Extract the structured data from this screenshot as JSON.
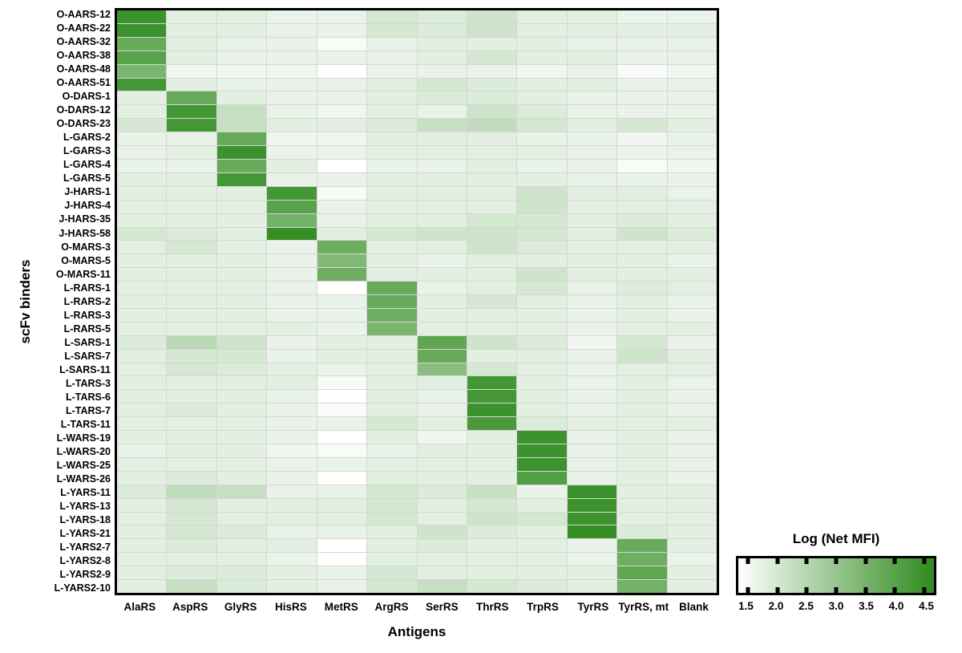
{
  "figure": {
    "y_axis_label": "scFv binders",
    "x_axis_label": "Antigens"
  },
  "colorbar": {
    "title": "Log (Net MFI)",
    "tick_labels": [
      "1.5",
      "2.0",
      "2.5",
      "3.0",
      "3.5",
      "4.0",
      "4.5"
    ],
    "min_value": 1.5,
    "max_value": 4.5,
    "min_color": "#ffffff",
    "max_color": "#2e8b1e"
  },
  "chart_data": {
    "type": "heatmap",
    "xlabel": "Antigens",
    "ylabel": "scFv binders",
    "legend_title": "Log (Net MFI)",
    "color_scale": {
      "min": 1.5,
      "max": 4.5,
      "min_color": "#ffffff",
      "max_color": "#2e8b1e",
      "legend_position": "bottom-right"
    },
    "columns": [
      "AlaRS",
      "AspRS",
      "GlyRS",
      "HisRS",
      "MetRS",
      "ArgRS",
      "SerRS",
      "ThrRS",
      "TrpRS",
      "TyrRS",
      "TyrRS, mt",
      "Blank"
    ],
    "rows": [
      "O-AARS-12",
      "O-AARS-22",
      "O-AARS-32",
      "O-AARS-38",
      "O-AARS-48",
      "O-AARS-51",
      "O-DARS-1",
      "O-DARS-12",
      "O-DARS-23",
      "L-GARS-2",
      "L-GARS-3",
      "L-GARS-4",
      "L-GARS-5",
      "J-HARS-1",
      "J-HARS-4",
      "J-HARS-35",
      "J-HARS-58",
      "O-MARS-3",
      "O-MARS-5",
      "O-MARS-11",
      "L-RARS-1",
      "L-RARS-2",
      "L-RARS-3",
      "L-RARS-5",
      "L-SARS-1",
      "L-SARS-7",
      "L-SARS-11",
      "L-TARS-3",
      "L-TARS-6",
      "L-TARS-7",
      "L-TARS-11",
      "L-WARS-19",
      "L-WARS-20",
      "L-WARS-25",
      "L-WARS-26",
      "L-YARS-11",
      "L-YARS-13",
      "L-YARS-18",
      "L-YARS-21",
      "L-YARS2-7",
      "L-YARS2-8",
      "L-YARS2-9",
      "L-YARS2-10"
    ],
    "values": [
      [
        4.3,
        1.9,
        1.9,
        1.8,
        1.8,
        2.1,
        2.0,
        2.2,
        1.9,
        1.9,
        1.8,
        1.8
      ],
      [
        4.3,
        1.9,
        1.9,
        1.8,
        1.8,
        2.1,
        2.0,
        2.2,
        1.9,
        1.9,
        1.9,
        1.9
      ],
      [
        3.7,
        1.9,
        1.8,
        1.8,
        1.6,
        1.8,
        1.9,
        1.9,
        1.9,
        1.8,
        1.8,
        1.8
      ],
      [
        3.9,
        1.9,
        1.8,
        1.8,
        1.8,
        1.8,
        1.9,
        2.1,
        1.9,
        1.9,
        1.8,
        1.8
      ],
      [
        3.4,
        1.7,
        1.7,
        1.7,
        1.5,
        1.8,
        1.8,
        1.8,
        1.7,
        1.8,
        1.6,
        1.7
      ],
      [
        4.2,
        1.9,
        1.8,
        1.8,
        1.8,
        1.9,
        2.1,
        2.0,
        1.9,
        1.9,
        1.8,
        1.8
      ],
      [
        1.9,
        3.7,
        1.9,
        1.8,
        1.8,
        1.9,
        2.0,
        2.0,
        1.9,
        1.8,
        1.8,
        1.8
      ],
      [
        1.9,
        4.2,
        2.3,
        1.8,
        1.7,
        1.9,
        1.8,
        2.2,
        2.0,
        1.8,
        1.8,
        1.8
      ],
      [
        2.1,
        4.2,
        2.3,
        1.9,
        1.9,
        2.0,
        2.3,
        2.4,
        2.1,
        1.9,
        2.1,
        1.9
      ],
      [
        1.8,
        1.8,
        3.7,
        1.7,
        1.7,
        1.9,
        1.9,
        1.9,
        1.8,
        1.8,
        1.7,
        1.8
      ],
      [
        1.8,
        1.9,
        4.3,
        1.8,
        1.8,
        1.9,
        1.9,
        1.9,
        1.9,
        1.8,
        1.8,
        1.8
      ],
      [
        1.8,
        1.8,
        3.7,
        1.9,
        1.5,
        1.8,
        1.8,
        1.9,
        1.8,
        1.8,
        1.6,
        1.7
      ],
      [
        1.9,
        1.9,
        4.2,
        1.8,
        1.8,
        1.9,
        1.9,
        1.9,
        1.9,
        1.8,
        1.8,
        1.8
      ],
      [
        1.9,
        1.9,
        1.9,
        4.2,
        1.6,
        1.9,
        1.9,
        1.9,
        2.2,
        1.9,
        1.9,
        1.8
      ],
      [
        1.9,
        1.9,
        1.9,
        3.9,
        1.8,
        1.9,
        1.9,
        1.9,
        2.2,
        1.9,
        1.9,
        1.9
      ],
      [
        1.9,
        1.9,
        1.9,
        3.5,
        1.8,
        1.9,
        1.9,
        2.1,
        2.1,
        1.9,
        2.0,
        1.9
      ],
      [
        2.1,
        2.0,
        1.9,
        4.4,
        1.9,
        2.1,
        2.2,
        2.2,
        2.1,
        1.9,
        2.2,
        2.0
      ],
      [
        1.9,
        2.1,
        1.9,
        1.8,
        3.6,
        1.9,
        1.9,
        2.2,
        2.0,
        1.9,
        1.9,
        1.9
      ],
      [
        1.9,
        1.9,
        1.9,
        1.8,
        3.3,
        1.9,
        1.8,
        1.9,
        1.9,
        1.9,
        1.9,
        1.8
      ],
      [
        1.9,
        1.9,
        1.9,
        1.8,
        3.6,
        1.9,
        1.9,
        1.9,
        2.2,
        1.9,
        1.9,
        1.9
      ],
      [
        1.9,
        1.9,
        1.9,
        1.8,
        1.5,
        3.7,
        1.8,
        1.9,
        2.1,
        1.8,
        2.0,
        1.9
      ],
      [
        1.9,
        1.9,
        1.9,
        1.8,
        1.8,
        3.7,
        1.9,
        2.1,
        1.9,
        1.8,
        1.9,
        1.8
      ],
      [
        1.9,
        1.9,
        1.9,
        1.8,
        1.8,
        3.6,
        1.9,
        1.9,
        1.9,
        1.8,
        1.9,
        1.8
      ],
      [
        1.9,
        1.9,
        1.9,
        1.9,
        1.8,
        3.4,
        1.9,
        1.9,
        1.9,
        1.8,
        1.9,
        1.9
      ],
      [
        2.0,
        2.5,
        2.2,
        1.8,
        1.9,
        1.9,
        3.8,
        2.2,
        2.0,
        1.7,
        2.1,
        1.8
      ],
      [
        1.9,
        2.1,
        2.1,
        1.8,
        1.9,
        1.9,
        3.7,
        1.9,
        1.9,
        1.8,
        2.2,
        1.9
      ],
      [
        1.9,
        2.1,
        2.0,
        1.9,
        1.8,
        1.9,
        3.2,
        2.1,
        1.9,
        1.8,
        1.9,
        1.9
      ],
      [
        1.9,
        1.9,
        1.9,
        1.9,
        1.6,
        1.9,
        1.9,
        4.2,
        1.9,
        1.8,
        1.9,
        1.8
      ],
      [
        1.9,
        1.9,
        1.9,
        1.8,
        1.5,
        1.9,
        1.8,
        4.2,
        1.9,
        1.8,
        1.9,
        1.8
      ],
      [
        1.9,
        2.0,
        1.9,
        1.8,
        1.6,
        1.9,
        1.8,
        4.3,
        1.9,
        1.8,
        1.9,
        1.8
      ],
      [
        1.9,
        1.9,
        1.9,
        1.8,
        1.8,
        2.1,
        1.9,
        4.1,
        2.0,
        1.9,
        1.9,
        1.9
      ],
      [
        1.9,
        1.9,
        1.9,
        1.8,
        1.5,
        1.9,
        1.7,
        1.9,
        4.3,
        1.8,
        1.9,
        1.8
      ],
      [
        1.8,
        1.9,
        1.9,
        1.7,
        1.6,
        1.8,
        1.9,
        1.9,
        4.3,
        1.8,
        1.9,
        1.8
      ],
      [
        1.9,
        1.9,
        1.9,
        1.8,
        1.8,
        1.9,
        1.9,
        1.9,
        4.3,
        1.8,
        1.9,
        1.8
      ],
      [
        1.9,
        2.0,
        1.9,
        1.8,
        1.5,
        1.9,
        1.9,
        1.9,
        4.0,
        1.8,
        1.9,
        1.8
      ],
      [
        2.0,
        2.4,
        2.3,
        1.8,
        1.8,
        2.1,
        2.0,
        2.3,
        1.8,
        4.3,
        1.9,
        1.9
      ],
      [
        1.9,
        2.1,
        1.9,
        1.9,
        1.9,
        2.1,
        1.9,
        2.1,
        1.9,
        4.3,
        1.9,
        1.9
      ],
      [
        1.9,
        2.1,
        1.9,
        1.9,
        1.9,
        2.1,
        1.9,
        2.2,
        2.1,
        4.3,
        1.9,
        1.9
      ],
      [
        1.9,
        2.1,
        2.0,
        1.8,
        1.8,
        1.9,
        2.2,
        2.0,
        1.9,
        4.4,
        2.0,
        1.9
      ],
      [
        1.9,
        2.0,
        1.9,
        1.9,
        1.5,
        1.9,
        2.0,
        1.9,
        1.9,
        1.8,
        3.7,
        1.9
      ],
      [
        1.9,
        1.9,
        1.9,
        1.8,
        1.4,
        1.9,
        1.9,
        1.9,
        1.9,
        1.8,
        3.6,
        1.8
      ],
      [
        1.9,
        2.0,
        2.0,
        1.9,
        1.8,
        2.1,
        1.9,
        1.9,
        1.9,
        1.9,
        3.8,
        1.9
      ],
      [
        1.9,
        2.3,
        2.0,
        1.9,
        1.8,
        2.1,
        2.3,
        2.1,
        2.0,
        1.9,
        3.5,
        1.9
      ]
    ]
  }
}
